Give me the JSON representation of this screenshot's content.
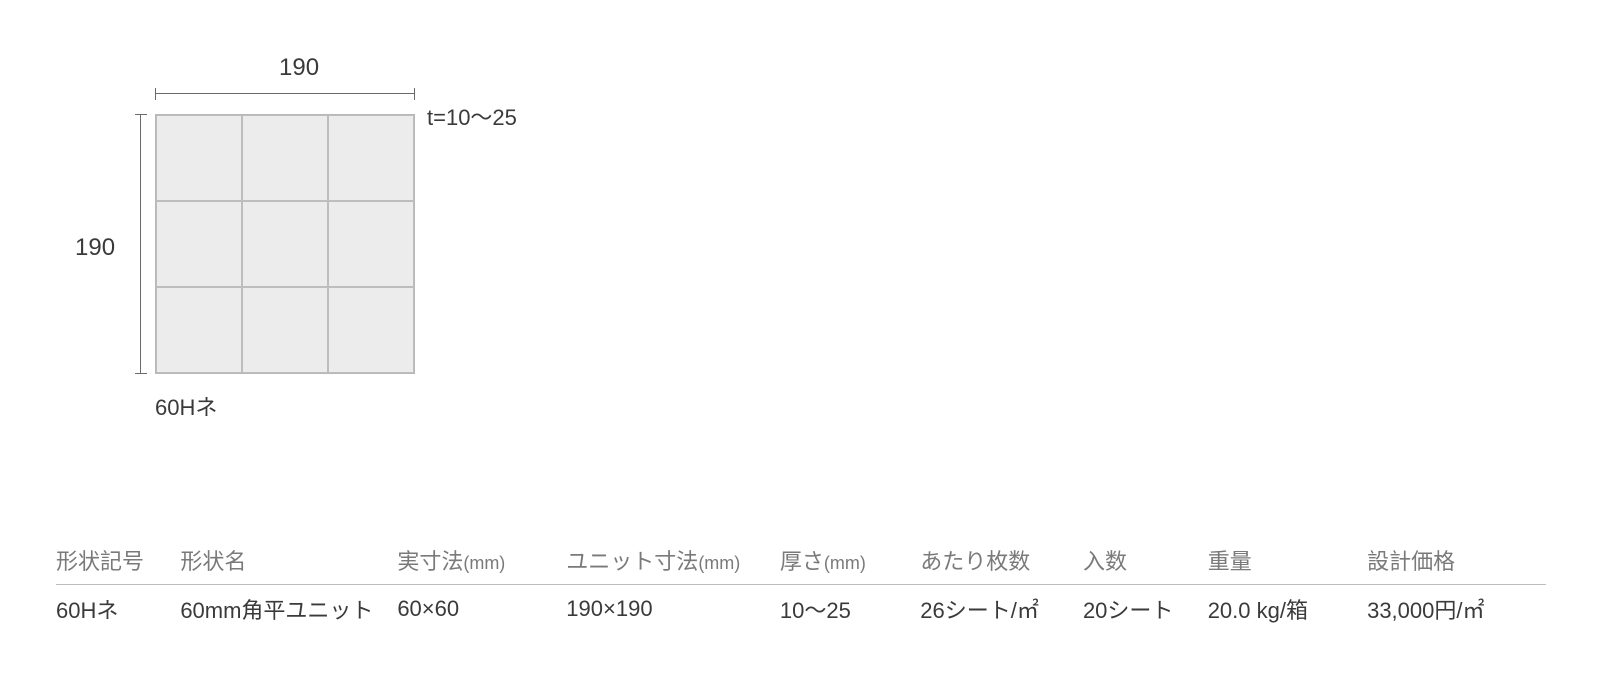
{
  "diagram": {
    "width_label": "190",
    "height_label": "190",
    "thickness_label": "t=10〜25",
    "product_code": "60Hネ",
    "grid": {
      "rows": 3,
      "cols": 3,
      "outer_mm": 190,
      "cell_color": "#ececec",
      "border_color": "#bdbdbd"
    },
    "bar_color": "#6a6a6a",
    "label_fontsize": 24
  },
  "table": {
    "headers": {
      "code": {
        "label": "形状記号",
        "unit": ""
      },
      "name": {
        "label": "形状名",
        "unit": ""
      },
      "actual": {
        "label": "実寸法",
        "unit": "(mm)"
      },
      "unit": {
        "label": "ユニット寸法",
        "unit": "(mm)"
      },
      "thick": {
        "label": "厚さ",
        "unit": "(mm)"
      },
      "per": {
        "label": "あたり枚数",
        "unit": ""
      },
      "qty": {
        "label": "入数",
        "unit": ""
      },
      "wt": {
        "label": "重量",
        "unit": ""
      },
      "price": {
        "label": "設計価格",
        "unit": ""
      }
    },
    "row": {
      "code": "60Hネ",
      "name": "60mm角平ユニット",
      "actual": "60×60",
      "unit": "190×190",
      "thick": "10〜25",
      "per": "26シート/㎡",
      "qty": "20シート",
      "wt": "20.0 kg/箱",
      "price": "33,000円/㎡"
    },
    "header_color": "#7a7a7a",
    "row_color": "#3a3a3a",
    "rule_color": "#bdbdbd"
  }
}
